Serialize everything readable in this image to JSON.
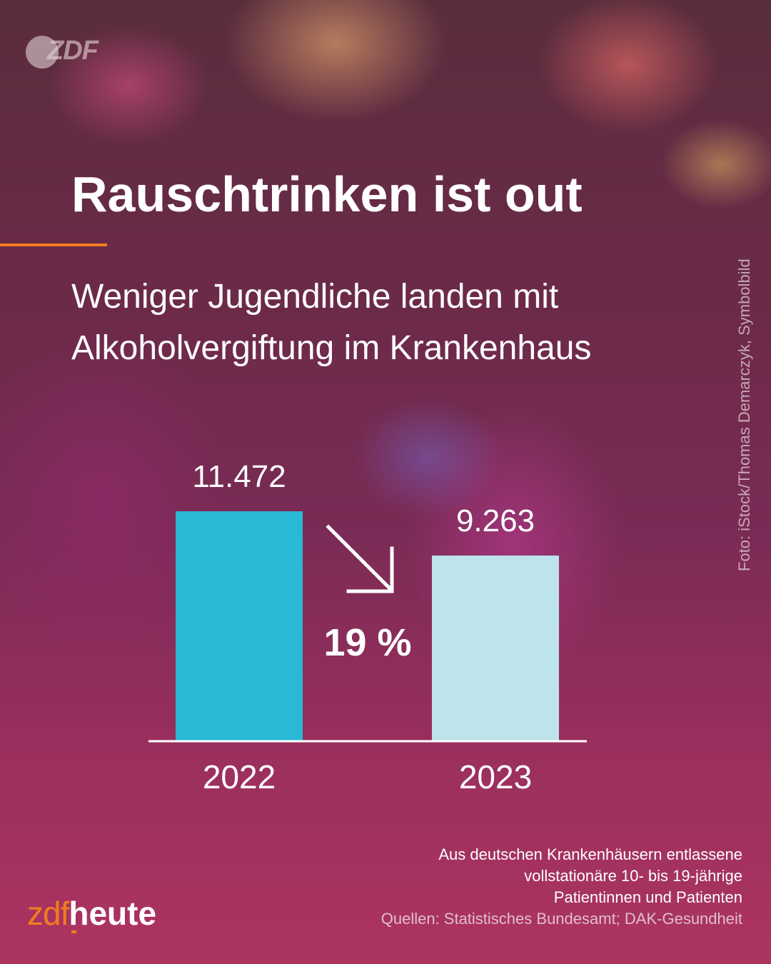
{
  "brand": {
    "corner_logo": "ZDF",
    "logo_zdf": "zdf",
    "logo_heute": "heute",
    "accent_color": "#f07d1e"
  },
  "title": "Rauschtrinken ist out",
  "subtitle": "Weniger Jugendliche landen mit Alkoholvergiftung im Krankenhaus",
  "photo_credit": "Foto: iStock/Thomas Demarczyk, Symbolbild",
  "chart_data": {
    "type": "bar",
    "categories": [
      "2022",
      "2023"
    ],
    "values": [
      11472,
      9263
    ],
    "value_labels": [
      "11.472",
      "9.263"
    ],
    "bar_colors": [
      "#29b8d6",
      "#bde3ec"
    ],
    "change_label": "19 %",
    "change_direction": "down",
    "ylim": [
      0,
      11472
    ],
    "grid": false
  },
  "footnote": {
    "lines": [
      "Aus deutschen Krankenhäusern entlassene",
      "vollstationäre 10- bis 19-jährige",
      "Patientinnen und Patienten"
    ],
    "sources": "Quellen: Statistisches Bundesamt; DAK-Gesundheit"
  }
}
